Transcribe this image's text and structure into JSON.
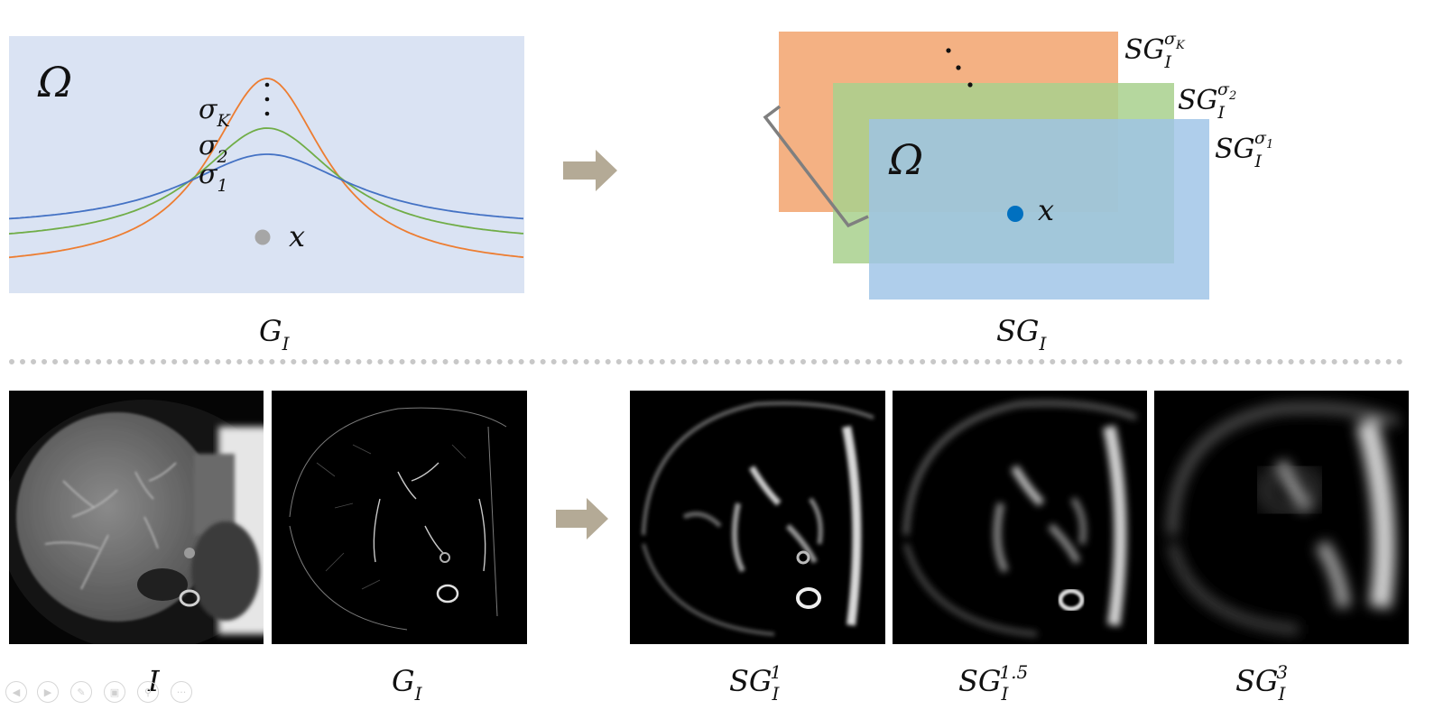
{
  "top_left": {
    "omega": "Ω",
    "sigma_K": "σ",
    "sigma_K_sub": "K",
    "sigma_2": "σ",
    "sigma_2_sub": "2",
    "sigma_1": "σ",
    "sigma_1_sub": "1",
    "point_label": "x",
    "caption_main": "G",
    "caption_sub": "I",
    "colors": {
      "background": "#dae3f3",
      "sigma_K": "#ed7d31",
      "sigma_2": "#70ad47",
      "sigma_1": "#4472c4",
      "point": "#a6a6a6"
    }
  },
  "top_right": {
    "omega": "Ω",
    "point_label": "x",
    "layer_K": {
      "main": "SG",
      "sub": "I",
      "sup": "σ",
      "sup_sub": "K",
      "color": "#f4b183"
    },
    "layer_2": {
      "main": "SG",
      "sub": "I",
      "sup": "σ",
      "sup_sub": "2",
      "color": "#a9d18e"
    },
    "layer_1": {
      "main": "SG",
      "sub": "I",
      "sup": "σ",
      "sup_sub": "1",
      "color": "#9dc3e6"
    },
    "caption_main": "SG",
    "caption_sub": "I",
    "colors": {
      "point": "#0070c0",
      "arrow": "#b4aa96"
    }
  },
  "bottom": {
    "panels": [
      {
        "main": "I",
        "sub": "",
        "sup": ""
      },
      {
        "main": "G",
        "sub": "I",
        "sup": ""
      },
      {
        "main": "SG",
        "sub": "I",
        "sup": "1"
      },
      {
        "main": "SG",
        "sub": "I",
        "sup": "1.5"
      },
      {
        "main": "SG",
        "sub": "I",
        "sup": "3"
      }
    ]
  },
  "slide_controls": [
    "prev-icon",
    "next-icon",
    "pen-icon",
    "screen-icon",
    "zoom-icon",
    "more-icon"
  ]
}
